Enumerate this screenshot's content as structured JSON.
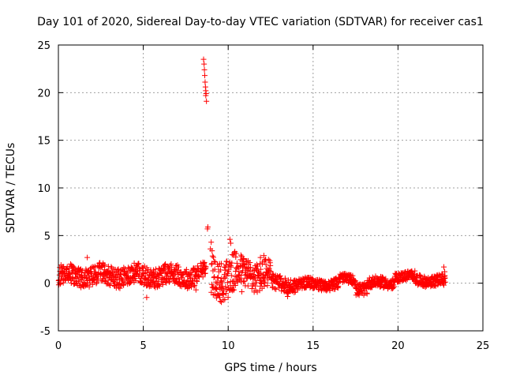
{
  "chart_data": {
    "type": "scatter",
    "title": "Day 101 of 2020, Sidereal Day-to-day VTEC variation (SDTVAR) for receiver cas1",
    "xlabel": "GPS time / hours",
    "ylabel": "SDTVAR / TECUs",
    "xlim": [
      0,
      25
    ],
    "ylim": [
      -5,
      25
    ],
    "xticks": [
      0,
      5,
      10,
      15,
      20,
      25
    ],
    "yticks": [
      -5,
      0,
      5,
      10,
      15,
      20,
      25
    ],
    "grid": true,
    "marker": "+",
    "marker_color": "#ff0000",
    "segments": [
      {
        "x0": 0.0,
        "x1": 8.3,
        "center": 0.8,
        "spread": 1.3
      },
      {
        "x0": 8.35,
        "x1": 8.7,
        "center": 1.2,
        "spread": 1.0
      },
      {
        "x0": 9.0,
        "x1": 10.6,
        "center": 0.8,
        "spread": 2.6
      },
      {
        "x0": 10.6,
        "x1": 12.5,
        "center": 1.0,
        "spread": 2.0
      },
      {
        "x0": 12.5,
        "x1": 14.0,
        "center": -0.1,
        "spread": 1.0
      },
      {
        "x0": 14.0,
        "x1": 16.5,
        "center": -0.1,
        "spread": 0.7
      },
      {
        "x0": 16.5,
        "x1": 17.5,
        "center": 0.4,
        "spread": 0.6
      },
      {
        "x0": 17.5,
        "x1": 18.2,
        "center": -0.5,
        "spread": 0.8
      },
      {
        "x0": 18.2,
        "x1": 19.8,
        "center": 0.0,
        "spread": 0.7
      },
      {
        "x0": 19.8,
        "x1": 21.0,
        "center": 0.7,
        "spread": 0.6
      },
      {
        "x0": 21.0,
        "x1": 22.8,
        "center": 0.3,
        "spread": 0.7
      }
    ],
    "outliers": [
      [
        8.55,
        23.5
      ],
      [
        8.58,
        23.0
      ],
      [
        8.6,
        22.4
      ],
      [
        8.62,
        21.8
      ],
      [
        8.64,
        21.1
      ],
      [
        8.66,
        20.6
      ],
      [
        8.68,
        20.2
      ],
      [
        8.7,
        19.9
      ],
      [
        8.72,
        19.1
      ],
      [
        8.68,
        19.7
      ],
      [
        8.8,
        5.9
      ],
      [
        8.78,
        5.7
      ],
      [
        9.0,
        4.3
      ],
      [
        8.95,
        3.6
      ],
      [
        9.05,
        3.4
      ],
      [
        1.7,
        2.7
      ],
      [
        11.9,
        2.7
      ],
      [
        12.1,
        2.9
      ],
      [
        10.1,
        4.6
      ],
      [
        10.15,
        4.2
      ],
      [
        9.5,
        -1.5
      ],
      [
        9.6,
        -2.0
      ],
      [
        9.7,
        -1.2
      ],
      [
        8.1,
        -0.7
      ],
      [
        22.7,
        1.7
      ],
      [
        22.75,
        1.2
      ],
      [
        22.7,
        -0.2
      ],
      [
        5.2,
        -1.5
      ],
      [
        13.5,
        -1.4
      ],
      [
        10.8,
        -0.9
      ]
    ]
  }
}
